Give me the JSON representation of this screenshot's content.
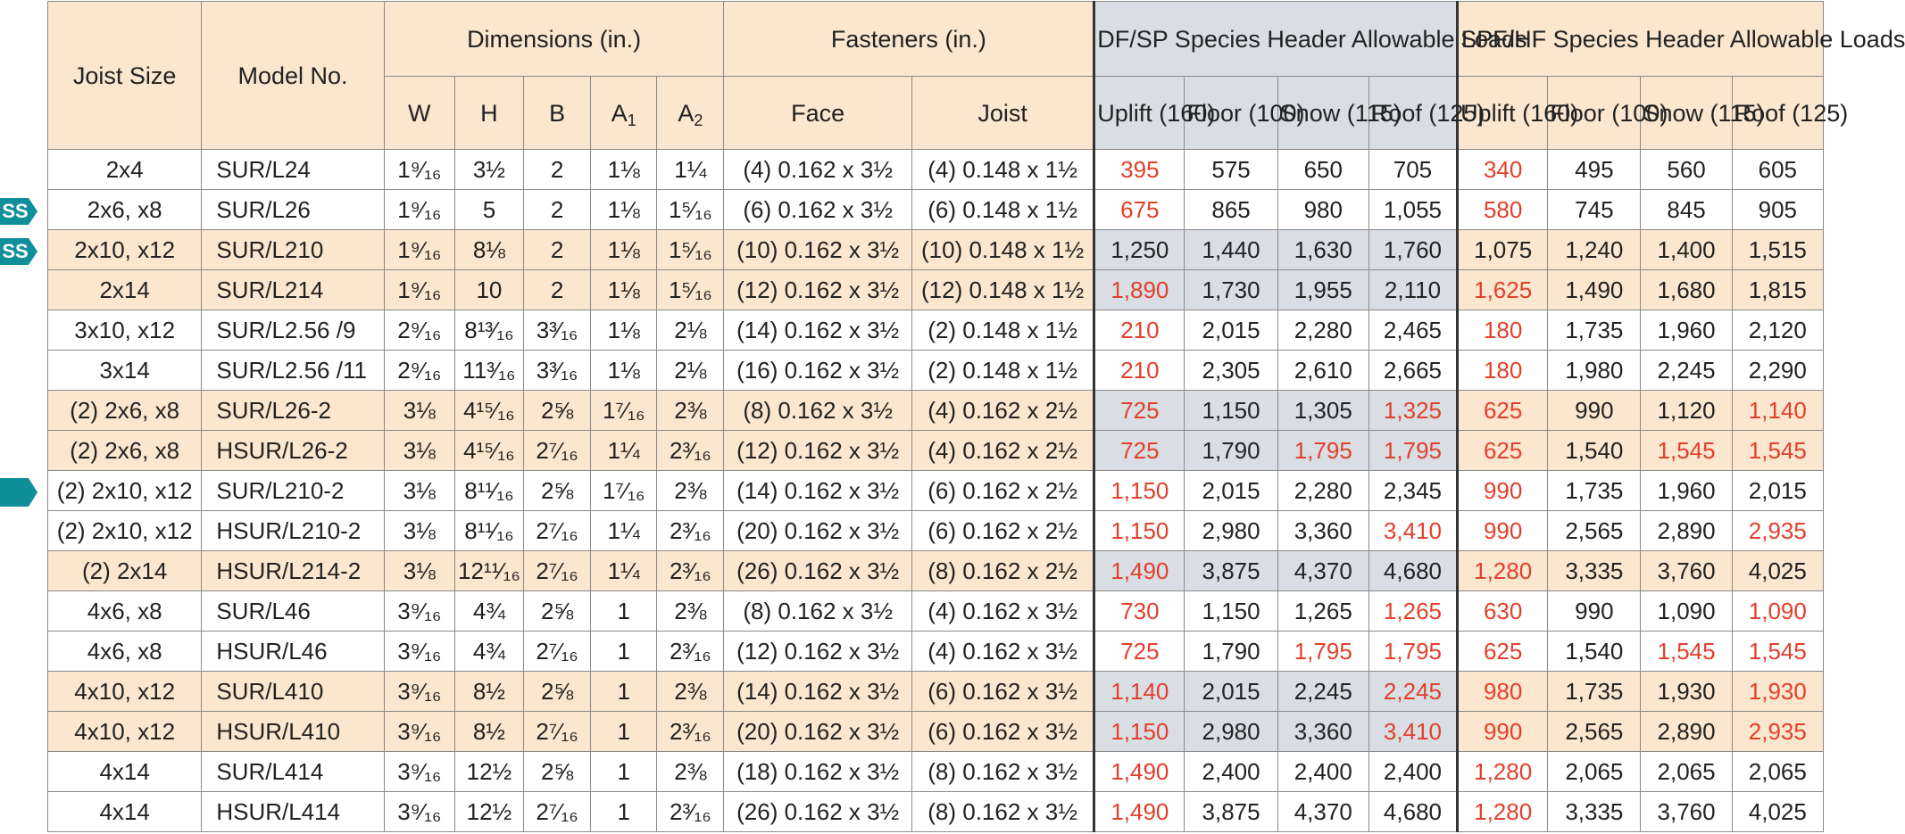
{
  "header": {
    "joist_size": "Joist Size",
    "model_no": "Model No.",
    "dimensions": "Dimensions (in.)",
    "fasteners": "Fasteners (in.)",
    "df_group": "DF/SP Species Header Allowable Loads",
    "spf_group": "SPF/HF Species Header Allowable Loads",
    "dim_cols": [
      "W",
      "H",
      "B",
      "A",
      "A"
    ],
    "dim_subs": [
      "",
      "",
      "",
      "1",
      "2"
    ],
    "fastener_cols": [
      "Face",
      "Joist"
    ],
    "load_cols": [
      "Uplift (160)",
      "Floor (100)",
      "Snow (115)",
      "Roof (125)"
    ]
  },
  "markers": {
    "ss_label": "SS",
    "accent_color": "#0f8f9a"
  },
  "colors": {
    "header_bg": "#fbe6cf",
    "df_bg": "#d9dee4",
    "red_value": "#e2402b"
  },
  "rows": [
    {
      "joist": "2x4",
      "model": "SUR/L24",
      "w": "1⁹⁄₁₆",
      "h": "3½",
      "b": "2",
      "a1": "1⅛",
      "a2": "1¼",
      "face": "(4) 0.162 x 3½",
      "jst": "(4) 0.148 x 1½",
      "df": [
        "395",
        "575",
        "650",
        "705"
      ],
      "spf": [
        "340",
        "495",
        "560",
        "605"
      ]
    },
    {
      "joist": "2x6, x8",
      "model": "SUR/L26",
      "w": "1⁹⁄₁₆",
      "h": "5",
      "b": "2",
      "a1": "1⅛",
      "a2": "1⁵⁄₁₆",
      "face": "(6) 0.162 x 3½",
      "jst": "(6) 0.148 x 1½",
      "df": [
        "675",
        "865",
        "980",
        "1,055"
      ],
      "spf": [
        "580",
        "745",
        "845",
        "905"
      ]
    },
    {
      "joist": "2x10, x12",
      "model": "SUR/L210",
      "w": "1⁹⁄₁₆",
      "h": "8⅛",
      "b": "2",
      "a1": "1⅛",
      "a2": "1⁵⁄₁₆",
      "face": "(10) 0.162 x 3½",
      "jst": "(10) 0.148 x 1½",
      "df": [
        "1,250",
        "1,440",
        "1,630",
        "1,760"
      ],
      "spf": [
        "1,075",
        "1,240",
        "1,400",
        "1,515"
      ]
    },
    {
      "joist": "2x14",
      "model": "SUR/L214",
      "w": "1⁹⁄₁₆",
      "h": "10",
      "b": "2",
      "a1": "1⅛",
      "a2": "1⁵⁄₁₆",
      "face": "(12) 0.162 x 3½",
      "jst": "(12) 0.148 x 1½",
      "df": [
        "1,890",
        "1,730",
        "1,955",
        "2,110"
      ],
      "spf": [
        "1,625",
        "1,490",
        "1,680",
        "1,815"
      ]
    },
    {
      "joist": "3x10, x12",
      "model": "SUR/L2.56 /9",
      "w": "2⁹⁄₁₆",
      "h": "8¹³⁄₁₆",
      "b": "3³⁄₁₆",
      "a1": "1⅛",
      "a2": "2⅛",
      "face": "(14) 0.162 x 3½",
      "jst": "(2) 0.148 x 1½",
      "df": [
        "210",
        "2,015",
        "2,280",
        "2,465"
      ],
      "spf": [
        "180",
        "1,735",
        "1,960",
        "2,120"
      ]
    },
    {
      "joist": "3x14",
      "model": "SUR/L2.56 /11",
      "w": "2⁹⁄₁₆",
      "h": "11³⁄₁₆",
      "b": "3³⁄₁₆",
      "a1": "1⅛",
      "a2": "2⅛",
      "face": "(16) 0.162 x 3½",
      "jst": "(2) 0.148 x 1½",
      "df": [
        "210",
        "2,305",
        "2,610",
        "2,665"
      ],
      "spf": [
        "180",
        "1,980",
        "2,245",
        "2,290"
      ]
    },
    {
      "joist": "(2) 2x6, x8",
      "model": "SUR/L26-2",
      "w": "3⅛",
      "h": "4¹⁵⁄₁₆",
      "b": "2⅝",
      "a1": "1⁷⁄₁₆",
      "a2": "2⅜",
      "face": "(8) 0.162 x 3½",
      "jst": "(4) 0.162 x 2½",
      "df": [
        "725",
        "1,150",
        "1,305",
        "1,325"
      ],
      "spf": [
        "625",
        "990",
        "1,120",
        "1,140"
      ]
    },
    {
      "joist": "(2) 2x6, x8",
      "model": "HSUR/L26-2",
      "w": "3⅛",
      "h": "4¹⁵⁄₁₆",
      "b": "2⁷⁄₁₆",
      "a1": "1¼",
      "a2": "2³⁄₁₆",
      "face": "(12) 0.162 x 3½",
      "jst": "(4) 0.162 x 2½",
      "df": [
        "725",
        "1,790",
        "1,795",
        "1,795"
      ],
      "spf": [
        "625",
        "1,540",
        "1,545",
        "1,545"
      ]
    },
    {
      "joist": "(2) 2x10, x12",
      "model": "SUR/L210-2",
      "w": "3⅛",
      "h": "8¹¹⁄₁₆",
      "b": "2⅝",
      "a1": "1⁷⁄₁₆",
      "a2": "2⅜",
      "face": "(14) 0.162 x 3½",
      "jst": "(6) 0.162 x 2½",
      "df": [
        "1,150",
        "2,015",
        "2,280",
        "2,345"
      ],
      "spf": [
        "990",
        "1,735",
        "1,960",
        "2,015"
      ]
    },
    {
      "joist": "(2) 2x10, x12",
      "model": "HSUR/L210-2",
      "w": "3⅛",
      "h": "8¹¹⁄₁₆",
      "b": "2⁷⁄₁₆",
      "a1": "1¼",
      "a2": "2³⁄₁₆",
      "face": "(20) 0.162 x 3½",
      "jst": "(6) 0.162 x 2½",
      "df": [
        "1,150",
        "2,980",
        "3,360",
        "3,410"
      ],
      "spf": [
        "990",
        "2,565",
        "2,890",
        "2,935"
      ]
    },
    {
      "joist": "(2) 2x14",
      "model": "HSUR/L214-2",
      "w": "3⅛",
      "h": "12¹¹⁄₁₆",
      "b": "2⁷⁄₁₆",
      "a1": "1¼",
      "a2": "2³⁄₁₆",
      "face": "(26) 0.162 x 3½",
      "jst": "(8) 0.162 x 2½",
      "df": [
        "1,490",
        "3,875",
        "4,370",
        "4,680"
      ],
      "spf": [
        "1,280",
        "3,335",
        "3,760",
        "4,025"
      ]
    },
    {
      "joist": "4x6, x8",
      "model": "SUR/L46",
      "w": "3⁹⁄₁₆",
      "h": "4¾",
      "b": "2⅝",
      "a1": "1",
      "a2": "2⅜",
      "face": "(8) 0.162 x 3½",
      "jst": "(4) 0.162 x 3½",
      "df": [
        "730",
        "1,150",
        "1,265",
        "1,265"
      ],
      "spf": [
        "630",
        "990",
        "1,090",
        "1,090"
      ]
    },
    {
      "joist": "4x6, x8",
      "model": "HSUR/L46",
      "w": "3⁹⁄₁₆",
      "h": "4¾",
      "b": "2⁷⁄₁₆",
      "a1": "1",
      "a2": "2³⁄₁₆",
      "face": "(12) 0.162 x 3½",
      "jst": "(4) 0.162 x 3½",
      "df": [
        "725",
        "1,790",
        "1,795",
        "1,795"
      ],
      "spf": [
        "625",
        "1,540",
        "1,545",
        "1,545"
      ]
    },
    {
      "joist": "4x10, x12",
      "model": "SUR/L410",
      "w": "3⁹⁄₁₆",
      "h": "8½",
      "b": "2⅝",
      "a1": "1",
      "a2": "2⅜",
      "face": "(14) 0.162 x 3½",
      "jst": "(6) 0.162 x 3½",
      "df": [
        "1,140",
        "2,015",
        "2,245",
        "2,245"
      ],
      "spf": [
        "980",
        "1,735",
        "1,930",
        "1,930"
      ]
    },
    {
      "joist": "4x10, x12",
      "model": "HSUR/L410",
      "w": "3⁹⁄₁₆",
      "h": "8½",
      "b": "2⁷⁄₁₆",
      "a1": "1",
      "a2": "2³⁄₁₆",
      "face": "(20) 0.162 x 3½",
      "jst": "(6) 0.162 x 3½",
      "df": [
        "1,150",
        "2,980",
        "3,360",
        "3,410"
      ],
      "spf": [
        "990",
        "2,565",
        "2,890",
        "2,935"
      ]
    },
    {
      "joist": "4x14",
      "model": "SUR/L414",
      "w": "3⁹⁄₁₆",
      "h": "12½",
      "b": "2⅝",
      "a1": "1",
      "a2": "2⅜",
      "face": "(18) 0.162 x 3½",
      "jst": "(8) 0.162 x 3½",
      "df": [
        "1,490",
        "2,400",
        "2,400",
        "2,400"
      ],
      "spf": [
        "1,280",
        "2,065",
        "2,065",
        "2,065"
      ]
    },
    {
      "joist": "4x14",
      "model": "HSUR/L414",
      "w": "3⁹⁄₁₆",
      "h": "12½",
      "b": "2⁷⁄₁₆",
      "a1": "1",
      "a2": "2³⁄₁₆",
      "face": "(26) 0.162 x 3½",
      "jst": "(8) 0.162 x 3½",
      "df": [
        "1,490",
        "3,875",
        "4,370",
        "4,680"
      ],
      "spf": [
        "1,280",
        "3,335",
        "3,760",
        "4,025"
      ]
    }
  ]
}
